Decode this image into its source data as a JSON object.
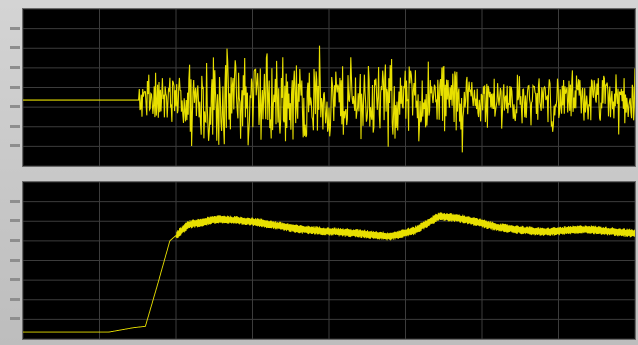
{
  "window": {
    "background": "#c9c9c9"
  },
  "plots": {
    "top": {
      "trace_color": "#e8e000",
      "grid_color": "#3c3c3c",
      "y_ticks": 8,
      "x_divisions": 8
    },
    "bottom": {
      "trace_color": "#e8e000",
      "grid_color": "#3c3c3c",
      "y_ticks": 8,
      "x_divisions": 8
    }
  },
  "chart_data": [
    {
      "type": "line",
      "xlim": [
        0,
        1
      ],
      "ylim": [
        -1,
        1
      ],
      "grid": true,
      "series": [
        {
          "segments": [
            {
              "x": [
                0,
                0.19
              ],
              "level": 0.0,
              "noise": 0.0
            },
            {
              "x": [
                0.19,
                0.26
              ],
              "level": 0.0,
              "noise": 0.45
            },
            {
              "x": [
                0.26,
                0.45
              ],
              "level": 0.0,
              "noise": 0.85
            },
            {
              "x": [
                0.45,
                0.72
              ],
              "level": 0.0,
              "noise": 0.7
            },
            {
              "x": [
                0.72,
                1.0
              ],
              "level": 0.0,
              "noise": 0.45
            }
          ]
        }
      ]
    },
    {
      "type": "line",
      "xlim": [
        0,
        1
      ],
      "ylim": [
        0,
        1
      ],
      "grid": true,
      "series": [
        {
          "points": [
            [
              0,
              0.02
            ],
            [
              0.14,
              0.02
            ],
            [
              0.18,
              0.05
            ],
            [
              0.2,
              0.06
            ],
            [
              0.22,
              0.35
            ],
            [
              0.24,
              0.65
            ],
            [
              0.27,
              0.76
            ],
            [
              0.32,
              0.8
            ],
            [
              0.38,
              0.78
            ],
            [
              0.45,
              0.73
            ],
            [
              0.55,
              0.7
            ],
            [
              0.6,
              0.68
            ],
            [
              0.64,
              0.72
            ],
            [
              0.68,
              0.82
            ],
            [
              0.72,
              0.8
            ],
            [
              0.78,
              0.74
            ],
            [
              0.85,
              0.71
            ],
            [
              0.92,
              0.73
            ],
            [
              1.0,
              0.7
            ]
          ],
          "band": 0.03
        }
      ]
    }
  ]
}
